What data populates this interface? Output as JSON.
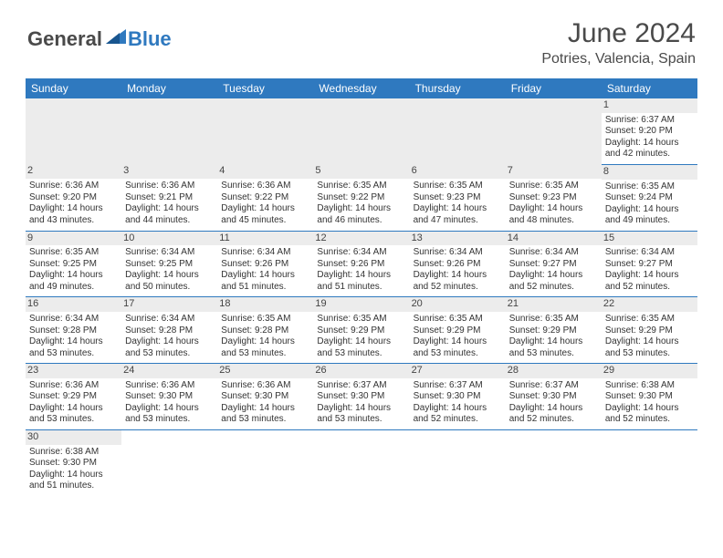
{
  "logo": {
    "general": "General",
    "blue": "Blue"
  },
  "title": "June 2024",
  "location": "Potries, Valencia, Spain",
  "colors": {
    "header_bg": "#2f79bf",
    "header_text": "#ffffff",
    "stripe": "#ececec",
    "rule": "#2f79bf",
    "body_text": "#333333",
    "logo_gray": "#4a4a4a",
    "logo_blue": "#2f79bf"
  },
  "dayHeaders": [
    "Sunday",
    "Monday",
    "Tuesday",
    "Wednesday",
    "Thursday",
    "Friday",
    "Saturday"
  ],
  "weeks": [
    [
      null,
      null,
      null,
      null,
      null,
      null,
      {
        "n": "1",
        "sr": "6:37 AM",
        "ss": "9:20 PM",
        "dl": "14 hours and 42 minutes."
      }
    ],
    [
      {
        "n": "2",
        "sr": "6:36 AM",
        "ss": "9:20 PM",
        "dl": "14 hours and 43 minutes."
      },
      {
        "n": "3",
        "sr": "6:36 AM",
        "ss": "9:21 PM",
        "dl": "14 hours and 44 minutes."
      },
      {
        "n": "4",
        "sr": "6:36 AM",
        "ss": "9:22 PM",
        "dl": "14 hours and 45 minutes."
      },
      {
        "n": "5",
        "sr": "6:35 AM",
        "ss": "9:22 PM",
        "dl": "14 hours and 46 minutes."
      },
      {
        "n": "6",
        "sr": "6:35 AM",
        "ss": "9:23 PM",
        "dl": "14 hours and 47 minutes."
      },
      {
        "n": "7",
        "sr": "6:35 AM",
        "ss": "9:23 PM",
        "dl": "14 hours and 48 minutes."
      },
      {
        "n": "8",
        "sr": "6:35 AM",
        "ss": "9:24 PM",
        "dl": "14 hours and 49 minutes."
      }
    ],
    [
      {
        "n": "9",
        "sr": "6:35 AM",
        "ss": "9:25 PM",
        "dl": "14 hours and 49 minutes."
      },
      {
        "n": "10",
        "sr": "6:34 AM",
        "ss": "9:25 PM",
        "dl": "14 hours and 50 minutes."
      },
      {
        "n": "11",
        "sr": "6:34 AM",
        "ss": "9:26 PM",
        "dl": "14 hours and 51 minutes."
      },
      {
        "n": "12",
        "sr": "6:34 AM",
        "ss": "9:26 PM",
        "dl": "14 hours and 51 minutes."
      },
      {
        "n": "13",
        "sr": "6:34 AM",
        "ss": "9:26 PM",
        "dl": "14 hours and 52 minutes."
      },
      {
        "n": "14",
        "sr": "6:34 AM",
        "ss": "9:27 PM",
        "dl": "14 hours and 52 minutes."
      },
      {
        "n": "15",
        "sr": "6:34 AM",
        "ss": "9:27 PM",
        "dl": "14 hours and 52 minutes."
      }
    ],
    [
      {
        "n": "16",
        "sr": "6:34 AM",
        "ss": "9:28 PM",
        "dl": "14 hours and 53 minutes."
      },
      {
        "n": "17",
        "sr": "6:34 AM",
        "ss": "9:28 PM",
        "dl": "14 hours and 53 minutes."
      },
      {
        "n": "18",
        "sr": "6:35 AM",
        "ss": "9:28 PM",
        "dl": "14 hours and 53 minutes."
      },
      {
        "n": "19",
        "sr": "6:35 AM",
        "ss": "9:29 PM",
        "dl": "14 hours and 53 minutes."
      },
      {
        "n": "20",
        "sr": "6:35 AM",
        "ss": "9:29 PM",
        "dl": "14 hours and 53 minutes."
      },
      {
        "n": "21",
        "sr": "6:35 AM",
        "ss": "9:29 PM",
        "dl": "14 hours and 53 minutes."
      },
      {
        "n": "22",
        "sr": "6:35 AM",
        "ss": "9:29 PM",
        "dl": "14 hours and 53 minutes."
      }
    ],
    [
      {
        "n": "23",
        "sr": "6:36 AM",
        "ss": "9:29 PM",
        "dl": "14 hours and 53 minutes."
      },
      {
        "n": "24",
        "sr": "6:36 AM",
        "ss": "9:30 PM",
        "dl": "14 hours and 53 minutes."
      },
      {
        "n": "25",
        "sr": "6:36 AM",
        "ss": "9:30 PM",
        "dl": "14 hours and 53 minutes."
      },
      {
        "n": "26",
        "sr": "6:37 AM",
        "ss": "9:30 PM",
        "dl": "14 hours and 53 minutes."
      },
      {
        "n": "27",
        "sr": "6:37 AM",
        "ss": "9:30 PM",
        "dl": "14 hours and 52 minutes."
      },
      {
        "n": "28",
        "sr": "6:37 AM",
        "ss": "9:30 PM",
        "dl": "14 hours and 52 minutes."
      },
      {
        "n": "29",
        "sr": "6:38 AM",
        "ss": "9:30 PM",
        "dl": "14 hours and 52 minutes."
      }
    ],
    [
      {
        "n": "30",
        "sr": "6:38 AM",
        "ss": "9:30 PM",
        "dl": "14 hours and 51 minutes."
      },
      null,
      null,
      null,
      null,
      null,
      null
    ]
  ],
  "labels": {
    "sunrise": "Sunrise:",
    "sunset": "Sunset:",
    "daylight": "Daylight:"
  }
}
